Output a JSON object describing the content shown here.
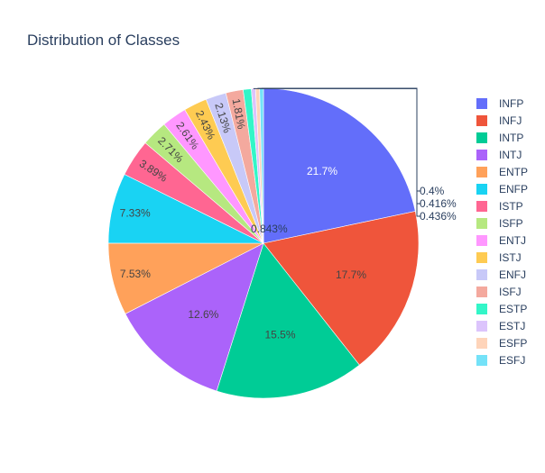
{
  "chart_data": {
    "type": "pie",
    "title": "Distribution of Classes",
    "legend_position": "right",
    "categories": [
      "INFP",
      "INFJ",
      "INTP",
      "INTJ",
      "ENTP",
      "ENFP",
      "ISTP",
      "ISFP",
      "ENTJ",
      "ISTJ",
      "ENFJ",
      "ISFJ",
      "ESTP",
      "ESTJ",
      "ESFP",
      "ESFJ"
    ],
    "values": [
      21.7,
      17.7,
      15.5,
      12.6,
      7.53,
      7.33,
      3.89,
      2.71,
      2.61,
      2.43,
      2.13,
      1.81,
      0.843,
      0.436,
      0.416,
      0.4
    ],
    "labels": [
      "21.7%",
      "17.7%",
      "15.5%",
      "12.6%",
      "7.53%",
      "7.33%",
      "3.89%",
      "2.71%",
      "2.61%",
      "2.43%",
      "2.13%",
      "1.81%",
      "0.843%",
      "0.436%",
      "0.416%",
      "0.4%"
    ],
    "colors": [
      "#636efa",
      "#EF553B",
      "#00cc96",
      "#ab63fa",
      "#FFA15A",
      "#19d3f3",
      "#FF6692",
      "#B6E880",
      "#FF97FF",
      "#FECB52",
      "#c8c9f8",
      "#f4a99e",
      "#33f6c8",
      "#dcc4fc",
      "#fed4ba",
      "#74e2f8"
    ],
    "label_colors": [
      "#ffffff",
      "#444444",
      "#444444",
      "#444444",
      "#444444",
      "#444444",
      "#444444",
      "#444444",
      "#444444",
      "#444444",
      "#444444",
      "#444444",
      "#2a3f5f",
      "#2a3f5f",
      "#2a3f5f",
      "#2a3f5f"
    ]
  }
}
